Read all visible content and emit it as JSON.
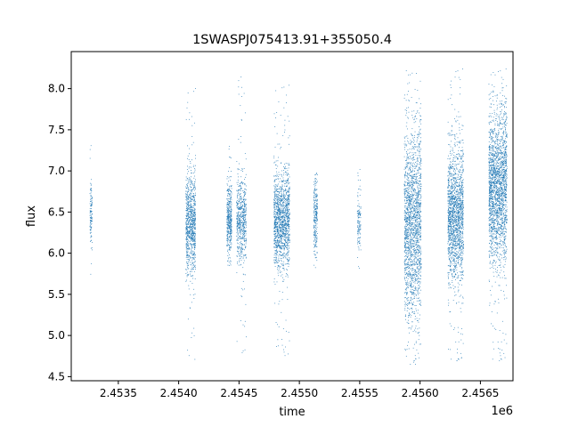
{
  "chart_data": {
    "type": "scatter",
    "title": "1SWASPJ075413.91+355050.4",
    "xlabel": "time",
    "ylabel": "flux",
    "x_offset_label": "1e6",
    "xlim": [
      2453110,
      2456770
    ],
    "ylim": [
      4.45,
      8.45
    ],
    "x_ticks": [
      2.4535,
      2.454,
      2.4545,
      2.455,
      2.4555,
      2.456,
      2.4565
    ],
    "x_tick_labels": [
      "2.4535",
      "2.4540",
      "2.4545",
      "2.4550",
      "2.4555",
      "2.4560",
      "2.4565"
    ],
    "y_ticks": [
      4.5,
      5.0,
      5.5,
      6.0,
      6.5,
      7.0,
      7.5,
      8.0
    ],
    "y_tick_labels": [
      "4.5",
      "5.0",
      "5.5",
      "6.0",
      "6.5",
      "7.0",
      "7.5",
      "8.0"
    ],
    "grid": false,
    "legend": "none",
    "marker_color": "#1f77b4",
    "series": [
      {
        "segments": [
          {
            "t_start": 2453265,
            "t_end": 2453285,
            "center": 6.45,
            "spread": 0.22,
            "min": 5.55,
            "max": 7.45,
            "n": 120
          },
          {
            "t_start": 2454060,
            "t_end": 2454140,
            "center": 6.35,
            "spread": 0.3,
            "min": 4.7,
            "max": 8.05,
            "n": 900
          },
          {
            "t_start": 2454400,
            "t_end": 2454440,
            "center": 6.4,
            "spread": 0.22,
            "min": 5.85,
            "max": 7.3,
            "n": 400
          },
          {
            "t_start": 2454480,
            "t_end": 2454560,
            "center": 6.4,
            "spread": 0.25,
            "min": 4.75,
            "max": 8.25,
            "n": 600
          },
          {
            "t_start": 2454790,
            "t_end": 2454920,
            "center": 6.4,
            "spread": 0.28,
            "min": 4.7,
            "max": 8.05,
            "n": 1400
          },
          {
            "t_start": 2455120,
            "t_end": 2455150,
            "center": 6.4,
            "spread": 0.25,
            "min": 5.6,
            "max": 7.0,
            "n": 250
          },
          {
            "t_start": 2455480,
            "t_end": 2455510,
            "center": 6.4,
            "spread": 0.22,
            "min": 5.75,
            "max": 7.05,
            "n": 120
          },
          {
            "t_start": 2455870,
            "t_end": 2456010,
            "center": 6.35,
            "spread": 0.55,
            "min": 4.65,
            "max": 8.3,
            "n": 1900
          },
          {
            "t_start": 2456230,
            "t_end": 2456360,
            "center": 6.45,
            "spread": 0.4,
            "min": 4.65,
            "max": 8.25,
            "n": 1700
          },
          {
            "t_start": 2456570,
            "t_end": 2456720,
            "center": 6.8,
            "spread": 0.45,
            "min": 4.65,
            "max": 8.25,
            "n": 2100
          }
        ]
      }
    ]
  }
}
